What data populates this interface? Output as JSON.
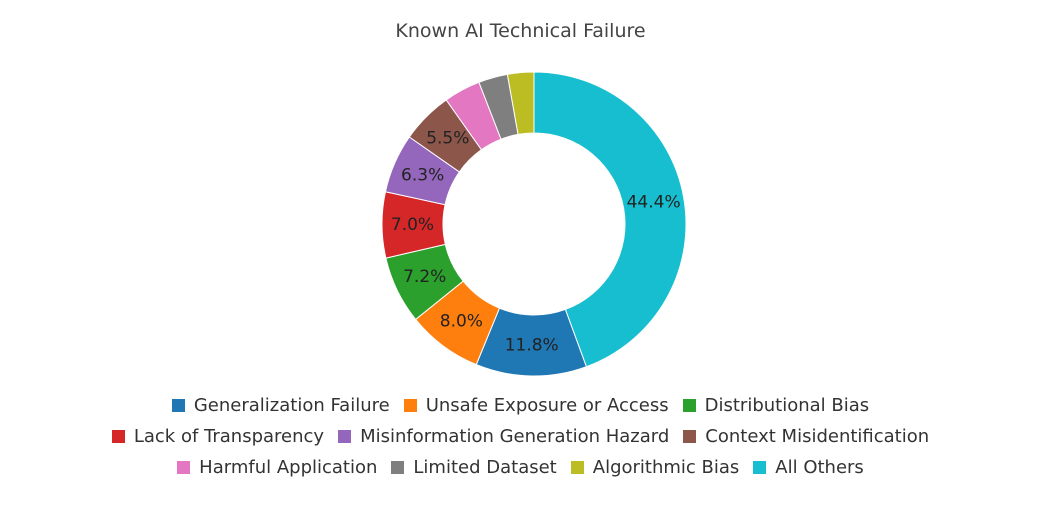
{
  "chart_data": {
    "type": "pie",
    "title": "Known AI Technical Failure",
    "legend_position": "bottom",
    "slices": [
      {
        "label": "All Others",
        "value": 44.4,
        "display": "44.4%",
        "color": "#17becf"
      },
      {
        "label": "Generalization Failure",
        "value": 11.8,
        "display": "11.8%",
        "color": "#1f77b4"
      },
      {
        "label": "Unsafe Exposure or Access",
        "value": 8.0,
        "display": "8.0%",
        "color": "#ff7f0e"
      },
      {
        "label": "Distributional Bias",
        "value": 7.2,
        "display": "7.2%",
        "color": "#2ca02c"
      },
      {
        "label": "Lack of Transparency",
        "value": 7.0,
        "display": "7.0%",
        "color": "#d62728"
      },
      {
        "label": "Misinformation Generation Hazard",
        "value": 6.3,
        "display": "6.3%",
        "color": "#9467bd"
      },
      {
        "label": "Context Misidentification",
        "value": 5.5,
        "display": "5.5%",
        "color": "#8c564b"
      },
      {
        "label": "Harmful Application",
        "value": 3.9,
        "display": "",
        "color": "#e377c2"
      },
      {
        "label": "Limited Dataset",
        "value": 3.1,
        "display": "",
        "color": "#7f7f7f"
      },
      {
        "label": "Algorithmic Bias",
        "value": 2.8,
        "display": "",
        "color": "#bcbd22"
      }
    ],
    "legend_rows": [
      [
        "Generalization Failure",
        "Unsafe Exposure or Access",
        "Distributional Bias"
      ],
      [
        "Lack of Transparency",
        "Misinformation Generation Hazard",
        "Context Misidentification"
      ],
      [
        "Harmful Application",
        "Limited Dataset",
        "Algorithmic Bias",
        "All Others"
      ]
    ]
  }
}
